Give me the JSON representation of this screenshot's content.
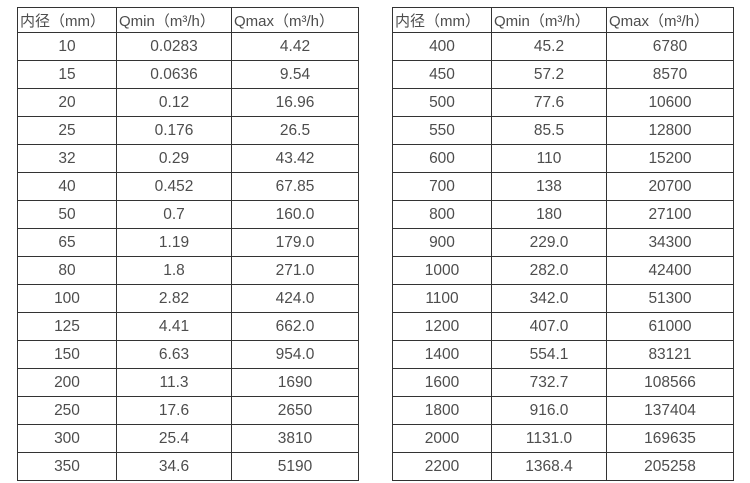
{
  "colors": {
    "background": "#ffffff",
    "border": "#333333",
    "text": "#4d4d4d"
  },
  "chart_data": [
    {
      "type": "table",
      "title": "",
      "columns": [
        "内径（mm）",
        "Qmin（m³/h）",
        "Qmax（m³/h）"
      ],
      "rows": [
        [
          "10",
          "0.0283",
          "4.42"
        ],
        [
          "15",
          "0.0636",
          "9.54"
        ],
        [
          "20",
          "0.12",
          "16.96"
        ],
        [
          "25",
          "0.176",
          "26.5"
        ],
        [
          "32",
          "0.29",
          "43.42"
        ],
        [
          "40",
          "0.452",
          "67.85"
        ],
        [
          "50",
          "0.7",
          "160.0"
        ],
        [
          "65",
          "1.19",
          "179.0"
        ],
        [
          "80",
          "1.8",
          "271.0"
        ],
        [
          "100",
          "2.82",
          "424.0"
        ],
        [
          "125",
          "4.41",
          "662.0"
        ],
        [
          "150",
          "6.63",
          "954.0"
        ],
        [
          "200",
          "11.3",
          "1690"
        ],
        [
          "250",
          "17.6",
          "2650"
        ],
        [
          "300",
          "25.4",
          "3810"
        ],
        [
          "350",
          "34.6",
          "5190"
        ]
      ]
    },
    {
      "type": "table",
      "title": "",
      "columns": [
        "内径（mm）",
        "Qmin（m³/h）",
        "Qmax（m³/h）"
      ],
      "rows": [
        [
          "400",
          "45.2",
          "6780"
        ],
        [
          "450",
          "57.2",
          "8570"
        ],
        [
          "500",
          "77.6",
          "10600"
        ],
        [
          "550",
          "85.5",
          "12800"
        ],
        [
          "600",
          "110",
          "15200"
        ],
        [
          "700",
          "138",
          "20700"
        ],
        [
          "800",
          "180",
          "27100"
        ],
        [
          "900",
          "229.0",
          "34300"
        ],
        [
          "1000",
          "282.0",
          "42400"
        ],
        [
          "1100",
          "342.0",
          "51300"
        ],
        [
          "1200",
          "407.0",
          "61000"
        ],
        [
          "1400",
          "554.1",
          "83121"
        ],
        [
          "1600",
          "732.7",
          "108566"
        ],
        [
          "1800",
          "916.0",
          "137404"
        ],
        [
          "2000",
          "1131.0",
          "169635"
        ],
        [
          "2200",
          "1368.4",
          "205258"
        ]
      ]
    }
  ]
}
